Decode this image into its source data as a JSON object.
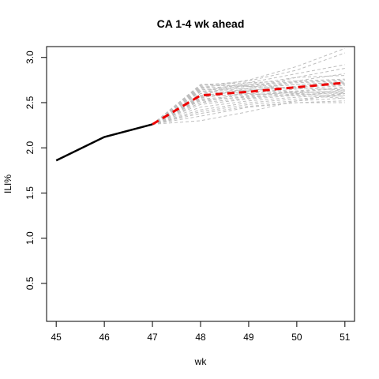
{
  "chart_data": {
    "type": "line",
    "title": "CA 1-4 wk ahead",
    "xlabel": "wk",
    "ylabel": "ILI%",
    "xlim": [
      44.8,
      51.2
    ],
    "ylim": [
      0.08,
      3.12
    ],
    "x_ticks": [
      "45",
      "46",
      "47",
      "48",
      "49",
      "50",
      "51"
    ],
    "y_ticks": [
      "0.5",
      "1.0",
      "1.5",
      "2.0",
      "2.5",
      "3.0"
    ],
    "grid": false,
    "legend": "none",
    "colors": {
      "observed": "#000000",
      "forecast_mean": "#ee0000",
      "ensemble": "#bebebe"
    },
    "observed": {
      "x": [
        45,
        46,
        47
      ],
      "y": [
        1.86,
        2.12,
        2.26
      ]
    },
    "forecast_mean": {
      "x": [
        47,
        48,
        49,
        50,
        51
      ],
      "y": [
        2.26,
        2.58,
        2.62,
        2.67,
        2.72
      ]
    },
    "ensemble": [
      [
        2.26,
        2.7,
        2.72,
        2.74,
        2.76
      ],
      [
        2.26,
        2.68,
        2.7,
        2.73,
        2.75
      ],
      [
        2.26,
        2.66,
        2.69,
        2.72,
        2.74
      ],
      [
        2.26,
        2.64,
        2.68,
        2.7,
        2.73
      ],
      [
        2.26,
        2.62,
        2.66,
        2.7,
        2.72
      ],
      [
        2.26,
        2.6,
        2.64,
        2.68,
        2.71
      ],
      [
        2.26,
        2.58,
        2.63,
        2.67,
        2.7
      ],
      [
        2.26,
        2.56,
        2.6,
        2.65,
        2.69
      ],
      [
        2.26,
        2.54,
        2.58,
        2.63,
        2.67
      ],
      [
        2.26,
        2.52,
        2.57,
        2.62,
        2.66
      ],
      [
        2.26,
        2.5,
        2.55,
        2.6,
        2.64
      ],
      [
        2.26,
        2.48,
        2.54,
        2.58,
        2.62
      ],
      [
        2.26,
        2.45,
        2.52,
        2.56,
        2.6
      ],
      [
        2.26,
        2.42,
        2.5,
        2.54,
        2.58
      ],
      [
        2.26,
        2.4,
        2.48,
        2.52,
        2.55
      ],
      [
        2.26,
        2.38,
        2.46,
        2.5,
        2.52
      ],
      [
        2.26,
        2.35,
        2.45,
        2.5,
        2.5
      ],
      [
        2.26,
        2.3,
        2.4,
        2.52,
        2.6
      ],
      [
        2.26,
        2.66,
        2.75,
        2.9,
        3.1
      ],
      [
        2.26,
        2.69,
        2.74,
        2.86,
        3.05
      ],
      [
        2.26,
        2.62,
        2.72,
        2.82,
        2.92
      ],
      [
        2.26,
        2.55,
        2.66,
        2.78,
        2.88
      ],
      [
        2.26,
        2.5,
        2.62,
        2.74,
        2.82
      ],
      [
        2.26,
        2.6,
        2.7,
        2.78,
        2.8
      ],
      [
        2.26,
        2.7,
        2.68,
        2.66,
        2.64
      ],
      [
        2.26,
        2.67,
        2.65,
        2.62,
        2.6
      ],
      [
        2.26,
        2.65,
        2.63,
        2.6,
        2.57
      ],
      [
        2.26,
        2.63,
        2.6,
        2.58,
        2.55
      ],
      [
        2.26,
        2.57,
        2.59,
        2.61,
        2.63
      ],
      [
        2.26,
        2.53,
        2.56,
        2.59,
        2.61
      ]
    ]
  }
}
